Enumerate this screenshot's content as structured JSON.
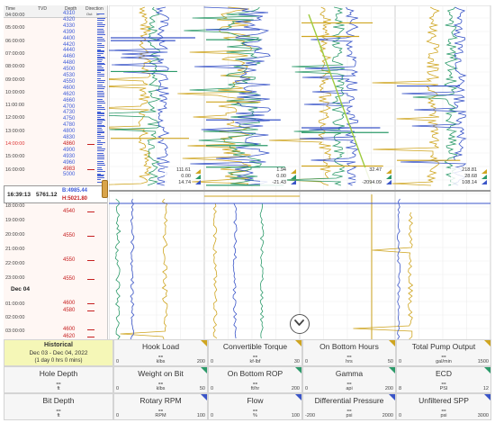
{
  "depth_column": {
    "headers": {
      "time": "Time",
      "tvd": "TVD",
      "depth": "Depth",
      "direction": "Direction",
      "out": "Out",
      "in": "In"
    },
    "time_ticks_upper": [
      "04:00:00",
      "05:00:00",
      "06:00:00",
      "07:00:00",
      "08:00:00",
      "09:00:00",
      "10:00:00",
      "11:00:00",
      "12:00:00",
      "13:00:00",
      "14:00:00",
      "15:00:00",
      "16:00:00"
    ],
    "time_ticks_lower": [
      "17:00:00",
      "18:00:00",
      "19:00:00",
      "20:00:00",
      "21:00:00",
      "22:00:00",
      "23:00:00"
    ],
    "date_marker": "Dec 04",
    "time_ticks_after_date": [
      "01:00:00",
      "02:00:00",
      "03:00:00"
    ],
    "depth_ticks_upper": [
      "4310",
      "4320",
      "4330",
      "4390",
      "4400",
      "4420",
      "4440",
      "4460",
      "4480",
      "4500",
      "4530",
      "4550",
      "4600",
      "4620",
      "4660",
      "4700",
      "4730",
      "4750",
      "4780",
      "4800",
      "4830",
      "4860",
      "4900",
      "4930",
      "4960",
      "4983",
      "5000"
    ],
    "depth_ticks_lower": [
      "4550",
      "4540",
      "4550",
      "4550",
      "4550",
      "4600",
      "4580",
      "4600",
      "4620"
    ],
    "cursor": {
      "time": "16:39:13",
      "tvd": "5761.12",
      "bit": "B:4985.44",
      "hole": "H:5021.80"
    }
  },
  "tracks": [
    {
      "name": "track-1",
      "readout": [
        "111.61",
        "0.00",
        "14.74"
      ]
    },
    {
      "name": "track-2",
      "readout": [
        "1.94",
        "0.00",
        "-21.43"
      ]
    },
    {
      "name": "track-3",
      "readout": [
        "32.47",
        "",
        "-2094.09"
      ]
    },
    {
      "name": "track-4",
      "readout": [
        "218.81",
        "28.68",
        "108.14"
      ]
    }
  ],
  "historical": {
    "title": "Historical",
    "range": "Dec 03 - Dec 04, 2022",
    "duration": "(1 day 0 hrs 0 mins)"
  },
  "cells": [
    {
      "id": "hook-load",
      "title": "Hook Load",
      "value": "--",
      "min": "0",
      "unit": "klbs",
      "max": "200",
      "color": "#cfa520"
    },
    {
      "id": "convertible-torque",
      "title": "Convertible Torque",
      "value": "--",
      "min": "0",
      "unit": "kf-lbf",
      "max": "30",
      "color": "#cfa520"
    },
    {
      "id": "on-bottom-hours",
      "title": "On Bottom Hours",
      "value": "--",
      "min": "0",
      "unit": "hrs",
      "max": "50",
      "color": "#cfa520"
    },
    {
      "id": "total-pump-output",
      "title": "Total Pump Output",
      "value": "--",
      "min": "0",
      "unit": "gal/min",
      "max": "1500",
      "color": "#cfa520"
    },
    {
      "id": "hole-depth",
      "title": "Hole Depth",
      "value": "--",
      "min": "",
      "unit": "ft",
      "max": "",
      "color": ""
    },
    {
      "id": "weight-on-bit",
      "title": "Weight on Bit",
      "value": "--",
      "min": "0",
      "unit": "klbs",
      "max": "50",
      "color": "#2c9a6a"
    },
    {
      "id": "on-bottom-rop",
      "title": "On Bottom ROP",
      "value": "--",
      "min": "0",
      "unit": "ft/hr",
      "max": "200",
      "color": "#2c9a6a"
    },
    {
      "id": "gamma",
      "title": "Gamma",
      "value": "--",
      "min": "0",
      "unit": "api",
      "max": "200",
      "color": "#2c9a6a"
    },
    {
      "id": "ecd",
      "title": "ECD",
      "value": "--",
      "min": "8",
      "unit": "PSI",
      "max": "12",
      "color": "#2c9a6a"
    },
    {
      "id": "bit-depth",
      "title": "Bit Depth",
      "value": "--",
      "min": "",
      "unit": "ft",
      "max": "",
      "color": ""
    },
    {
      "id": "rotary-rpm",
      "title": "Rotary RPM",
      "value": "--",
      "min": "0",
      "unit": "RPM",
      "max": "100",
      "color": "#3a55c8"
    },
    {
      "id": "flow",
      "title": "Flow",
      "value": "--",
      "min": "0",
      "unit": "%",
      "max": "100",
      "color": "#3a55c8"
    },
    {
      "id": "differential-pressure",
      "title": "Differential Pressure",
      "value": "--",
      "min": "-200",
      "unit": "psi",
      "max": "2000",
      "color": "#3a55c8"
    },
    {
      "id": "unfiltered-spp",
      "title": "Unfiltered SPP",
      "value": "--",
      "min": "0",
      "unit": "psi",
      "max": "3000",
      "color": "#3a55c8"
    }
  ],
  "icons": {
    "scroll": "chevron-down-icon"
  },
  "colors": {
    "hook_load": "#cfa520",
    "weight_on_bit": "#2c9a6a",
    "rotary_rpm": "#3a55c8",
    "historical_bg": "#f5f7b7",
    "cursor_bit": "#3d5bd9",
    "cursor_hole": "#c62020"
  }
}
